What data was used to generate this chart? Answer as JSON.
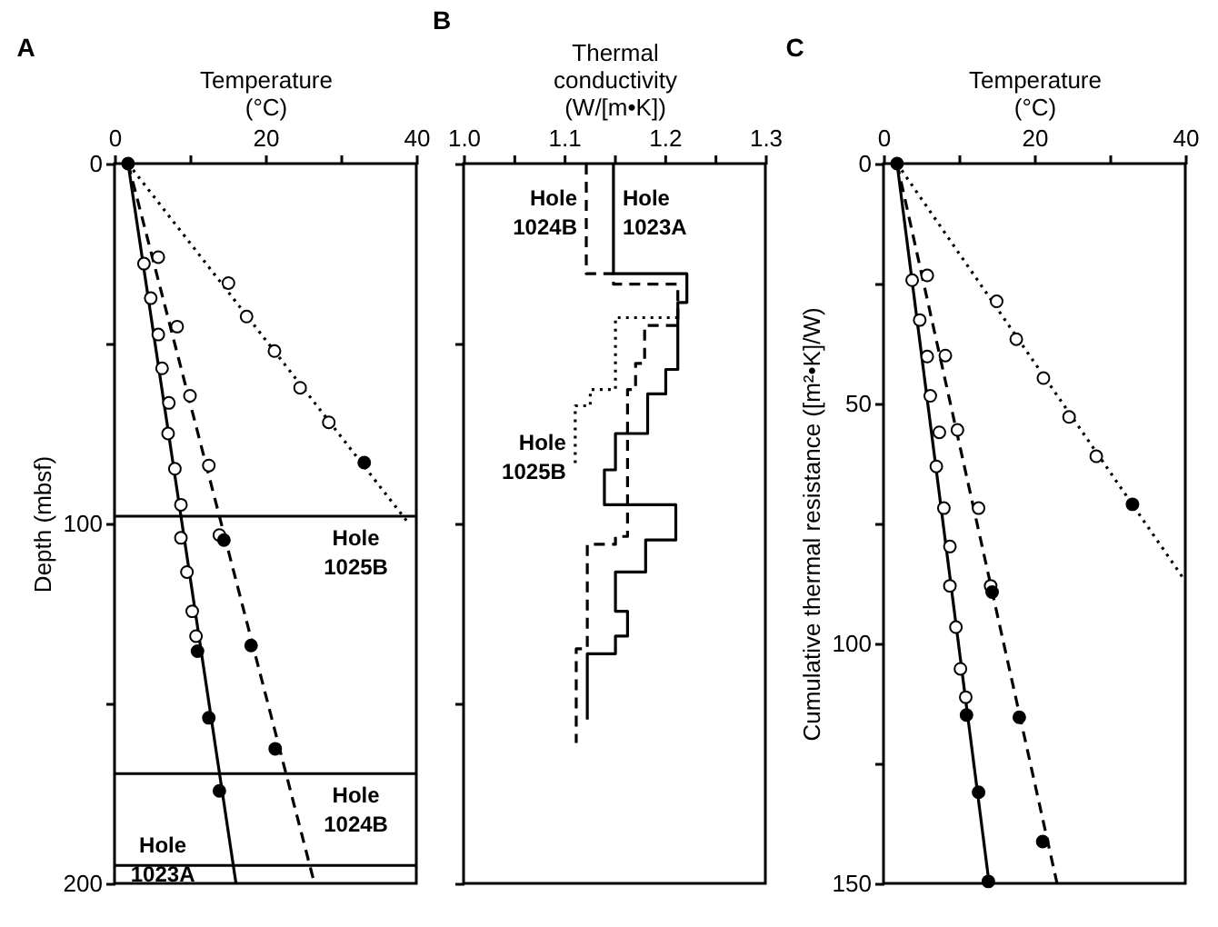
{
  "chart_data": [
    {
      "type": "line",
      "title": "A",
      "xlabel": "Temperature (°C)",
      "ylabel": "Depth (mbsf)",
      "xlim": [
        0,
        40
      ],
      "xticks": [
        0,
        {
          "value": 10,
          "label": null
        },
        20,
        {
          "value": 30,
          "label": null
        },
        40
      ],
      "ylim": [
        200,
        0
      ],
      "yticks": [
        0,
        {
          "value": 50,
          "label": null
        },
        100,
        {
          "value": 150,
          "label": null
        },
        200
      ],
      "series": [
        {
          "type": "line",
          "line_style": "solid",
          "color": "#000000",
          "x": [
            1.8,
            16.1
          ],
          "values": [
            0,
            200
          ]
        },
        {
          "type": "line",
          "line_style": "dashed",
          "color": "#000000",
          "x": [
            1.8,
            26.5
          ],
          "values": [
            0,
            200
          ]
        },
        {
          "type": "line",
          "line_style": "dotted",
          "color": "#000000",
          "x": [
            1.8,
            39
          ],
          "values": [
            0,
            100
          ]
        },
        {
          "type": "scatter",
          "marker": "circle",
          "color": "#ffffff",
          "x": [
            3.9,
            4.8,
            5.8,
            6.3,
            7.2,
            7.1,
            8.0,
            8.8,
            8.8,
            9.6,
            10.3,
            10.8
          ],
          "values": [
            27.8,
            37.4,
            47.5,
            56.9,
            66.5,
            75,
            84.8,
            94.8,
            104,
            113.5,
            124.4,
            131.3
          ]
        },
        {
          "type": "scatter",
          "marker": "circle",
          "color": "#ffffff",
          "x": [
            5.8,
            8.3,
            10.0,
            12.5,
            13.9
          ],
          "values": [
            26,
            45.3,
            64.5,
            83.9,
            103.2
          ]
        },
        {
          "type": "scatter",
          "marker": "circle",
          "color": "#ffffff",
          "x": [
            15.1,
            17.5,
            21.2,
            24.6,
            28.4
          ],
          "values": [
            33.2,
            42.5,
            52.1,
            62.3,
            71.9
          ]
        },
        {
          "type": "scatter",
          "marker": "circle",
          "color": "#000000",
          "x": [
            1.8,
            11.0,
            12.5,
            13.9
          ],
          "values": [
            0,
            135.5,
            154,
            174.3
          ]
        },
        {
          "type": "scatter",
          "marker": "circle",
          "color": "#000000",
          "x": [
            14.5,
            18.1,
            21.3
          ],
          "values": [
            104.6,
            133.9,
            162.6
          ]
        },
        {
          "type": "scatter",
          "marker": "circle",
          "color": "#000000",
          "x": [
            33.1
          ],
          "values": [
            83.1
          ]
        }
      ],
      "ref_lines": [
        {
          "axis": "y",
          "value": 98,
          "label": "Hole 1025B"
        },
        {
          "axis": "y",
          "value": 169.5,
          "label": "Hole 1024B"
        },
        {
          "axis": "y",
          "value": 195,
          "label": "Hole 1023A"
        }
      ]
    },
    {
      "type": "line",
      "title": "B",
      "xlabel": "Thermal conductivity (W/[m•K])",
      "xlim": [
        1.0,
        1.3
      ],
      "xticks": [
        {
          "value": 1,
          "label": "1.0"
        },
        {
          "value": 1.05,
          "label": null
        },
        1.1,
        {
          "value": 1.15,
          "label": null
        },
        1.2,
        {
          "value": 1.25,
          "label": null
        },
        1.3
      ],
      "ylim": [
        200,
        0
      ],
      "yticks": [
        0,
        50,
        100,
        150,
        200
      ],
      "tick_labels": "x",
      "series": [
        {
          "type": "line",
          "name": "Hole 1023A",
          "line_style": "solid",
          "color": "#000000",
          "x": [
            1.149,
            1.149,
            1.222,
            1.222,
            1.213,
            1.213,
            1.201,
            1.201,
            1.183,
            1.183,
            1.151,
            1.151,
            1.14,
            1.14,
            1.211,
            1.211,
            1.181,
            1.181,
            1.151,
            1.151,
            1.163,
            1.163,
            1.151,
            1.151,
            1.123,
            1.123
          ],
          "values": [
            0,
            30.6,
            30.6,
            38.6,
            38.6,
            57.2,
            57.2,
            64,
            64,
            75,
            75,
            85.1,
            85.1,
            94.8,
            94.8,
            104.6,
            104.6,
            113.5,
            113.5,
            124.4,
            124.4,
            131.3,
            131.3,
            136.2,
            136.2,
            154.5
          ]
        },
        {
          "type": "line",
          "name": "Hole 1024B",
          "line_style": "dashed",
          "color": "#000000",
          "x": [
            1.122,
            1.122,
            1.149,
            1.149,
            1.213,
            1.213,
            1.18,
            1.18,
            1.171,
            1.171,
            1.163,
            1.163,
            1.151,
            1.151,
            1.123,
            1.123,
            1.112,
            1.112
          ],
          "values": [
            0,
            30.6,
            30.6,
            33.5,
            33.5,
            45.0,
            45.0,
            55.5,
            55.5,
            62.8,
            62.8,
            103.6,
            103.6,
            105.8,
            105.8,
            134.8,
            134.8,
            161
          ]
        },
        {
          "type": "line",
          "name": "Hole 1025B",
          "line_style": "dotted",
          "color": "#000000",
          "x": [
            1.213,
            1.151,
            1.151,
            1.126,
            1.126,
            1.111,
            1.111
          ],
          "values": [
            42.8,
            42.8,
            62.8,
            62.8,
            67.3,
            67.3,
            84
          ]
        }
      ]
    },
    {
      "type": "line",
      "title": "C",
      "xlabel": "Temperature (°C)",
      "ylabel": "Cumulative thermal resistance ([m²•K]/W)",
      "xlim": [
        0,
        40
      ],
      "xticks": [
        0,
        {
          "value": 10,
          "label": null
        },
        20,
        {
          "value": 30,
          "label": null
        },
        40
      ],
      "ylim": [
        150,
        0
      ],
      "yticks": [
        0,
        {
          "value": 25,
          "label": null
        },
        50,
        {
          "value": 75,
          "label": null
        },
        100,
        {
          "value": 125,
          "label": null
        },
        150
      ],
      "series": [
        {
          "type": "line",
          "line_style": "solid",
          "color": "#000000",
          "x": [
            1.8,
            14.0
          ],
          "values": [
            0,
            150
          ]
        },
        {
          "type": "line",
          "line_style": "dashed",
          "color": "#000000",
          "x": [
            1.8,
            23.0
          ],
          "values": [
            0,
            150
          ]
        },
        {
          "type": "line",
          "line_style": "dotted",
          "color": "#000000",
          "x": [
            1.8,
            40
          ],
          "values": [
            0,
            87
          ]
        },
        {
          "type": "scatter",
          "marker": "circle",
          "color": "#ffffff",
          "x": [
            3.8,
            4.8,
            5.8,
            6.2,
            7.4,
            7.0,
            8.0,
            8.8,
            8.8,
            9.6,
            10.2,
            10.9
          ],
          "values": [
            24.3,
            32.6,
            40.2,
            48.4,
            56.0,
            63.1,
            71.8,
            79.8,
            88.0,
            96.6,
            105.3,
            111.2
          ]
        },
        {
          "type": "scatter",
          "marker": "circle",
          "color": "#ffffff",
          "x": [
            5.8,
            8.2,
            9.8,
            12.6,
            14.2
          ],
          "values": [
            23.3,
            40.0,
            55.5,
            71.8,
            88.0
          ]
        },
        {
          "type": "scatter",
          "marker": "circle",
          "color": "#ffffff",
          "x": [
            15.0,
            17.6,
            21.2,
            24.6,
            28.2
          ],
          "values": [
            28.7,
            36.6,
            44.7,
            52.8,
            61.0
          ]
        },
        {
          "type": "scatter",
          "marker": "circle",
          "color": "#000000",
          "x": [
            1.8,
            11.0,
            12.6,
            13.9
          ],
          "values": [
            0,
            114.9,
            131.0,
            149.6
          ]
        },
        {
          "type": "scatter",
          "marker": "circle",
          "color": "#000000",
          "x": [
            14.4,
            18.0,
            21.1
          ],
          "values": [
            89.3,
            115.4,
            141.3
          ]
        },
        {
          "type": "scatter",
          "marker": "circle",
          "color": "#000000",
          "x": [
            33.0
          ],
          "values": [
            71.0
          ]
        }
      ]
    }
  ]
}
